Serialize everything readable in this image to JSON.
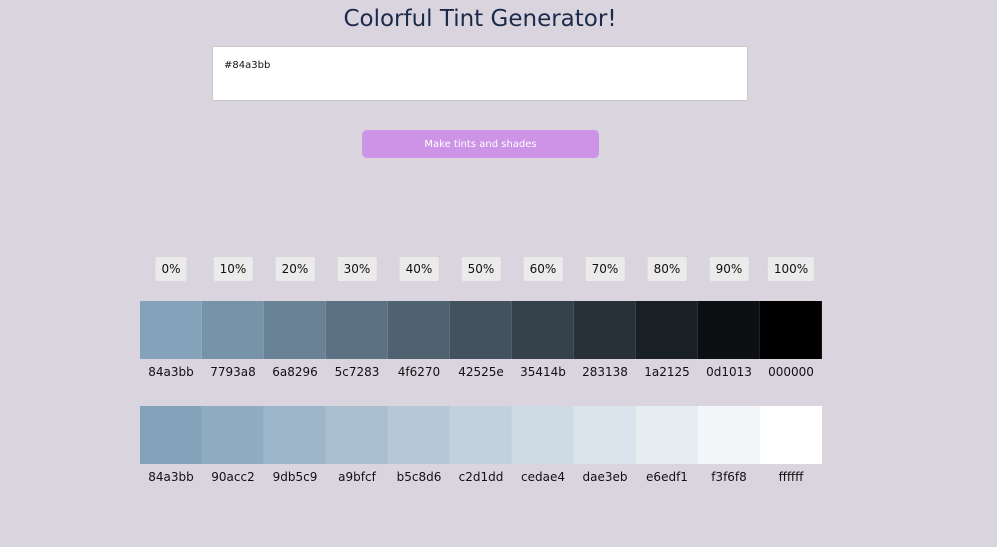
{
  "header": {
    "title": "Colorful Tint Generator!"
  },
  "input": {
    "value": "#84a3bb"
  },
  "button": {
    "label": "Make tints and shades",
    "color": "#cc93e6"
  },
  "percentages": [
    "0%",
    "10%",
    "20%",
    "30%",
    "40%",
    "50%",
    "60%",
    "70%",
    "80%",
    "90%",
    "100%"
  ],
  "shades": [
    "84a3bb",
    "7793a8",
    "6a8296",
    "5c7283",
    "4f6270",
    "42525e",
    "35414b",
    "283138",
    "1a2125",
    "0d1013",
    "000000"
  ],
  "tints": [
    "84a3bb",
    "90acc2",
    "9db5c9",
    "a9bfcf",
    "b5c8d6",
    "c2d1dd",
    "cedae4",
    "dae3eb",
    "e6edf1",
    "f3f6f8",
    "ffffff"
  ],
  "colors": {
    "background": "#dad4df",
    "title": "#1c2a4a"
  }
}
